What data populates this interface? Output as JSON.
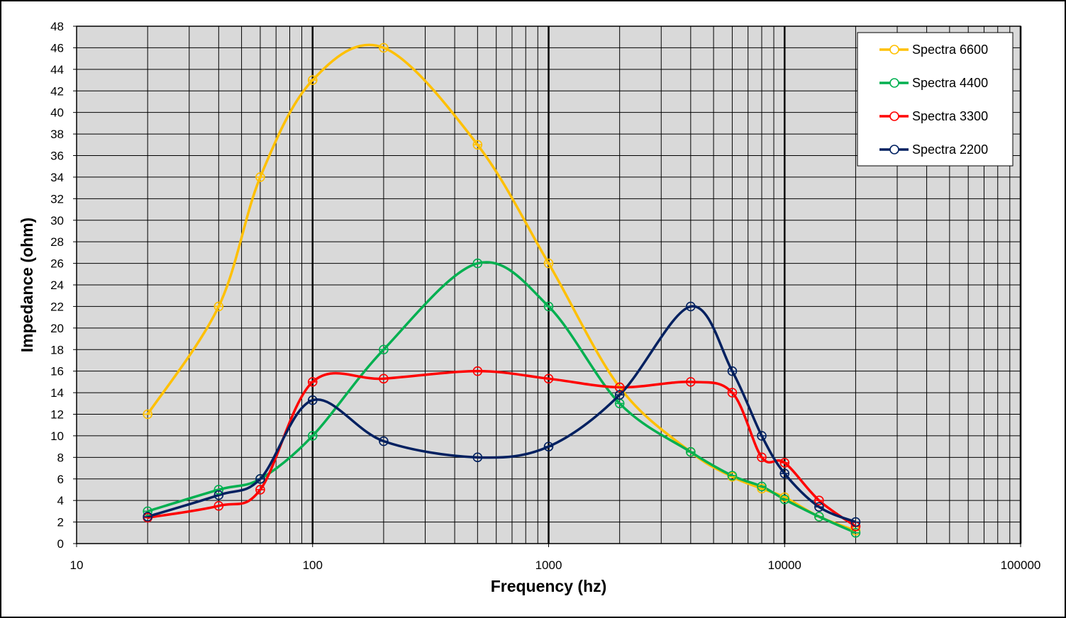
{
  "chart_data": {
    "type": "line",
    "xlabel": "Frequency (hz)",
    "ylabel": "Impedance (ohm)",
    "xscale": "log",
    "xlim": [
      10,
      100000
    ],
    "ylim": [
      0,
      48
    ],
    "ytick_step": 2,
    "xtick_labels": [
      "10",
      "100",
      "1000",
      "10000",
      "100000"
    ],
    "grid": true,
    "smooth": true,
    "plot_background": "#d9d9d9",
    "legend_position": "top-right",
    "x": [
      20,
      40,
      60,
      100,
      200,
      500,
      1000,
      2000,
      4000,
      6000,
      8000,
      10000,
      14000,
      20000
    ],
    "series": [
      {
        "name": "Spectra 6600",
        "color": "#ffc000",
        "values": [
          12,
          22,
          34,
          43,
          46,
          37,
          26,
          14.5,
          8.5,
          6.2,
          5.1,
          4.3,
          2.5,
          1.2
        ]
      },
      {
        "name": "Spectra 4400",
        "color": "#00b050",
        "values": [
          3,
          5,
          6,
          10,
          18,
          26,
          22,
          13,
          8.5,
          6.3,
          5.3,
          4.1,
          2.5,
          1
        ]
      },
      {
        "name": "Spectra 3300",
        "color": "#ff0000",
        "values": [
          2.4,
          3.5,
          5,
          15,
          15.3,
          16,
          15.3,
          14.5,
          15,
          14,
          8,
          7.5,
          4,
          1.6
        ]
      },
      {
        "name": "Spectra 2200",
        "color": "#002060",
        "values": [
          2.5,
          4.5,
          6,
          13.3,
          9.5,
          8,
          9,
          13.8,
          22,
          16,
          10,
          6.5,
          3.4,
          2
        ]
      }
    ]
  }
}
